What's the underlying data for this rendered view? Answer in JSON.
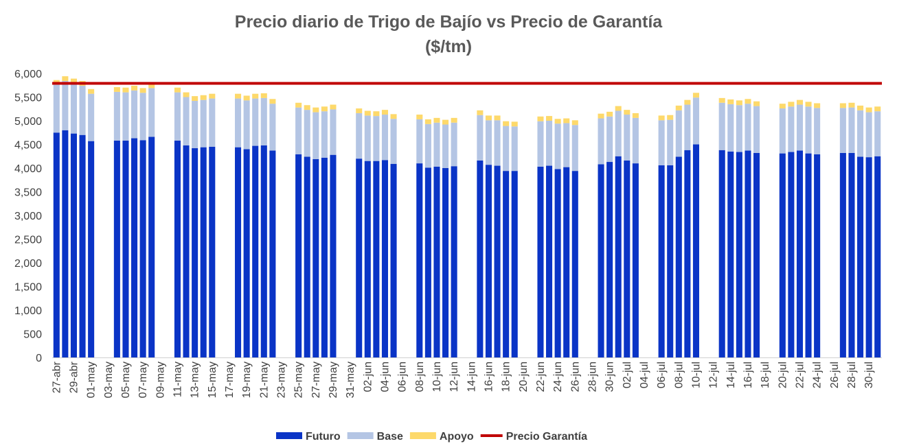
{
  "chart_data": {
    "type": "bar",
    "title_line1": "Precio diario de Trigo de Bajío vs Precio de Garantía",
    "title_line2": "($/tm)",
    "xlabel": "",
    "ylabel": "",
    "ylim": [
      0,
      6000
    ],
    "yticks": [
      0,
      500,
      1000,
      1500,
      2000,
      2500,
      3000,
      3500,
      4000,
      4500,
      5000,
      5500,
      6000
    ],
    "ytick_labels": [
      "0",
      "500",
      "1,000",
      "1,500",
      "2,000",
      "2,500",
      "3,000",
      "3,500",
      "4,000",
      "4,500",
      "5,000",
      "5,500",
      "6,000"
    ],
    "grid": false,
    "legend_position": "bottom",
    "colors": {
      "futuro": "#0a34c6",
      "base": "#b4c5e4",
      "apoyo": "#fdd96b",
      "garantia": "#c00000"
    },
    "legend": [
      {
        "name": "Futuro",
        "kind": "box"
      },
      {
        "name": "Base",
        "kind": "box"
      },
      {
        "name": "Apoyo",
        "kind": "box"
      },
      {
        "name": "Precio Garantía",
        "kind": "line"
      }
    ],
    "x_tick_labels": [
      "27-abr",
      "29-abr",
      "01-may",
      "03-may",
      "05-may",
      "07-may",
      "09-may",
      "11-may",
      "13-may",
      "15-may",
      "17-may",
      "19-may",
      "21-may",
      "23-may",
      "25-may",
      "27-may",
      "29-may",
      "31-may",
      "02-jun",
      "04-jun",
      "06-jun",
      "08-jun",
      "10-jun",
      "12-jun",
      "14-jun",
      "16-jun",
      "18-jun",
      "20-jun",
      "22-jun",
      "24-jun",
      "26-jun",
      "28-jun",
      "30-jun",
      "02-jul",
      "04-jul",
      "06-jul",
      "08-jul",
      "10-jul",
      "12-jul",
      "14-jul",
      "16-jul",
      "18-jul",
      "20-jul",
      "22-jul",
      "24-jul",
      "26-jul",
      "28-jul",
      "30-jul"
    ],
    "days": [
      "27-abr",
      "28-abr",
      "29-abr",
      "30-abr",
      "01-may",
      "02-may",
      "03-may",
      "04-may",
      "05-may",
      "06-may",
      "07-may",
      "08-may",
      "09-may",
      "10-may",
      "11-may",
      "12-may",
      "13-may",
      "14-may",
      "15-may",
      "16-may",
      "17-may",
      "18-may",
      "19-may",
      "20-may",
      "21-may",
      "22-may",
      "23-may",
      "24-may",
      "25-may",
      "26-may",
      "27-may",
      "28-may",
      "29-may",
      "30-may",
      "31-may",
      "01-jun",
      "02-jun",
      "03-jun",
      "04-jun",
      "05-jun",
      "06-jun",
      "07-jun",
      "08-jun",
      "09-jun",
      "10-jun",
      "11-jun",
      "12-jun",
      "13-jun",
      "14-jun",
      "15-jun",
      "16-jun",
      "17-jun",
      "18-jun",
      "19-jun",
      "20-jun",
      "21-jun",
      "22-jun",
      "23-jun",
      "24-jun",
      "25-jun",
      "26-jun",
      "27-jun",
      "28-jun",
      "29-jun",
      "30-jun",
      "01-jul",
      "02-jul",
      "03-jul",
      "04-jul",
      "05-jul",
      "06-jul",
      "07-jul",
      "08-jul",
      "09-jul",
      "10-jul",
      "11-jul",
      "12-jul",
      "13-jul",
      "14-jul",
      "15-jul",
      "16-jul",
      "17-jul",
      "18-jul",
      "19-jul",
      "20-jul",
      "21-jul",
      "22-jul",
      "23-jul",
      "24-jul",
      "25-jul",
      "26-jul",
      "27-jul",
      "28-jul",
      "29-jul",
      "30-jul",
      "31-jul"
    ],
    "series": [
      {
        "name": "Futuro",
        "values": [
          4750,
          4800,
          4730,
          4700,
          4570,
          null,
          null,
          4580,
          4580,
          4630,
          4590,
          4660,
          null,
          null,
          4580,
          4480,
          4420,
          4440,
          4450,
          null,
          null,
          4440,
          4400,
          4470,
          4480,
          4370,
          null,
          null,
          4290,
          4240,
          4190,
          4220,
          4280,
          null,
          null,
          4200,
          4150,
          4150,
          4170,
          4090,
          null,
          null,
          4100,
          4010,
          4030,
          4000,
          4040,
          null,
          null,
          4160,
          4070,
          4050,
          3940,
          3940,
          null,
          null,
          4030,
          4050,
          3980,
          4020,
          3940,
          null,
          null,
          4080,
          4130,
          4250,
          4160,
          4100,
          null,
          null,
          4060,
          4060,
          4240,
          4380,
          4500,
          null,
          null,
          4380,
          4350,
          4340,
          4370,
          4320,
          null,
          null,
          4310,
          4340,
          4370,
          4310,
          4290,
          null,
          null,
          4320,
          4320,
          4240,
          4230,
          4250
        ]
      },
      {
        "name": "Base",
        "values": [
          1010,
          1040,
          1060,
          1040,
          1000,
          null,
          null,
          1030,
          1020,
          1010,
          1000,
          1030,
          null,
          null,
          1020,
          1020,
          1000,
          1000,
          1020,
          null,
          null,
          1030,
          1030,
          1000,
          1000,
          990,
          null,
          null,
          990,
          990,
          990,
          980,
          960,
          null,
          null,
          960,
          960,
          950,
          960,
          950,
          null,
          null,
          930,
          920,
          930,
          920,
          920,
          null,
          null,
          960,
          940,
          960,
          950,
          940,
          null,
          null,
          960,
          950,
          960,
          930,
          970,
          null,
          null,
          970,
          960,
          960,
          970,
          960,
          null,
          null,
          950,
          960,
          980,
          960,
          990,
          null,
          null,
          1000,
          1000,
          990,
          990,
          990,
          null,
          null,
          950,
          960,
          970,
          990,
          980,
          null,
          null,
          950,
          960,
          980,
          950,
          950
        ]
      },
      {
        "name": "Apoyo",
        "values": [
          100,
          100,
          100,
          100,
          100,
          null,
          null,
          100,
          100,
          100,
          100,
          100,
          null,
          null,
          100,
          100,
          100,
          100,
          100,
          null,
          null,
          100,
          100,
          100,
          100,
          100,
          null,
          null,
          100,
          100,
          100,
          100,
          100,
          null,
          null,
          100,
          100,
          100,
          100,
          100,
          null,
          null,
          100,
          100,
          100,
          100,
          100,
          null,
          null,
          100,
          100,
          100,
          100,
          100,
          null,
          null,
          100,
          100,
          100,
          100,
          100,
          null,
          null,
          100,
          100,
          100,
          100,
          100,
          null,
          null,
          100,
          100,
          100,
          100,
          100,
          null,
          null,
          100,
          100,
          100,
          100,
          100,
          null,
          null,
          100,
          100,
          100,
          100,
          100,
          null,
          null,
          100,
          100,
          100,
          100,
          100
        ]
      }
    ],
    "reference_line": {
      "name": "Precio Garantía",
      "value": 5790
    }
  }
}
